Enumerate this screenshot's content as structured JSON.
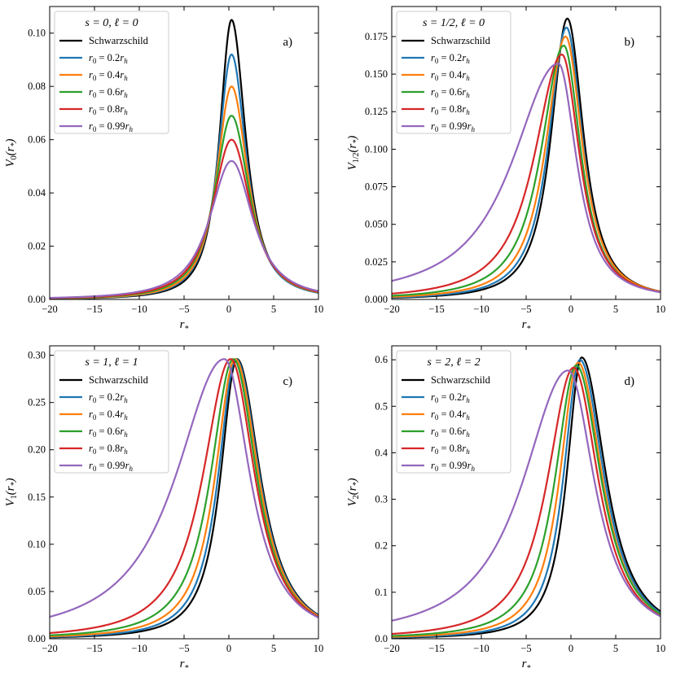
{
  "colors": {
    "schwarzschild": "#000000",
    "r0_0.2": "#1f77b4",
    "r0_0.4": "#ff7f0e",
    "r0_0.6": "#2ca02c",
    "r0_0.8": "#d62728",
    "r0_0.99": "#9467bd"
  },
  "chart_data": [
    {
      "type": "line",
      "panel_label": "a)",
      "legend_title": "s = 0, ℓ = 0",
      "xlabel": "r*",
      "ylabel": "V0(r*)",
      "xlim": [
        -20,
        10
      ],
      "ylim": [
        0,
        0.11
      ],
      "xticks": [
        -20,
        -15,
        -10,
        -5,
        0,
        5,
        10
      ],
      "yticks": [
        0.0,
        0.02,
        0.04,
        0.06,
        0.08,
        0.1
      ],
      "ytick_labels": [
        "0.00",
        "0.02",
        "0.04",
        "0.06",
        "0.08",
        "0.10"
      ],
      "legend_position": "top-left",
      "series": [
        {
          "name": "Schwarzschild",
          "color_key": "schwarzschild",
          "peak_x": 0.3,
          "peak_y": 0.105,
          "width_left": 1.7,
          "width_right": 2.0,
          "tail_left": 0.0
        },
        {
          "name": "r0 = 0.2rh",
          "color_key": "r0_0.2",
          "peak_x": 0.3,
          "peak_y": 0.092,
          "width_left": 1.9,
          "width_right": 2.1,
          "tail_left": 0.0
        },
        {
          "name": "r0 = 0.4rh",
          "color_key": "r0_0.4",
          "peak_x": 0.3,
          "peak_y": 0.08,
          "width_left": 2.1,
          "width_right": 2.3,
          "tail_left": 0.0
        },
        {
          "name": "r0 = 0.6rh",
          "color_key": "r0_0.6",
          "peak_x": 0.3,
          "peak_y": 0.069,
          "width_left": 2.4,
          "width_right": 2.5,
          "tail_left": 0.0
        },
        {
          "name": "r0 = 0.8rh",
          "color_key": "r0_0.8",
          "peak_x": 0.3,
          "peak_y": 0.06,
          "width_left": 2.7,
          "width_right": 2.7,
          "tail_left": 0.0
        },
        {
          "name": "r0 = 0.99rh",
          "color_key": "r0_0.99",
          "peak_x": 0.3,
          "peak_y": 0.052,
          "width_left": 3.1,
          "width_right": 3.0,
          "tail_left": 0.0
        }
      ]
    },
    {
      "type": "line",
      "panel_label": "b)",
      "legend_title": "s = 1/2, ℓ = 0",
      "xlabel": "r*",
      "ylabel": "V1/2(r*)",
      "xlim": [
        -20,
        10
      ],
      "ylim": [
        0,
        0.195
      ],
      "xticks": [
        -20,
        -15,
        -10,
        -5,
        0,
        5,
        10
      ],
      "yticks": [
        0.0,
        0.025,
        0.05,
        0.075,
        0.1,
        0.125,
        0.15,
        0.175
      ],
      "ytick_labels": [
        "0.000",
        "0.025",
        "0.050",
        "0.075",
        "0.100",
        "0.125",
        "0.150",
        "0.175"
      ],
      "legend_position": "top-left",
      "series": [
        {
          "name": "Schwarzschild",
          "color_key": "schwarzschild",
          "peak_x": -0.4,
          "peak_y": 0.187,
          "width_left": 2.3,
          "width_right": 2.3,
          "tail_left": 0.0
        },
        {
          "name": "r0 = 0.2rh",
          "color_key": "r0_0.2",
          "peak_x": -0.5,
          "peak_y": 0.181,
          "width_left": 2.5,
          "width_right": 2.3,
          "tail_left": 0.0
        },
        {
          "name": "r0 = 0.4rh",
          "color_key": "r0_0.4",
          "peak_x": -0.6,
          "peak_y": 0.175,
          "width_left": 2.8,
          "width_right": 2.4,
          "tail_left": 0.0
        },
        {
          "name": "r0 = 0.6rh",
          "color_key": "r0_0.6",
          "peak_x": -0.8,
          "peak_y": 0.169,
          "width_left": 3.2,
          "width_right": 2.4,
          "tail_left": 0.0
        },
        {
          "name": "r0 = 0.8rh",
          "color_key": "r0_0.8",
          "peak_x": -1.0,
          "peak_y": 0.163,
          "width_left": 3.9,
          "width_right": 2.5,
          "tail_left": 0.0
        },
        {
          "name": "r0 = 0.99rh",
          "color_key": "r0_0.99",
          "peak_x": -1.4,
          "peak_y": 0.157,
          "width_left": 6.5,
          "width_right": 2.6,
          "tail_left": 0.0
        }
      ]
    },
    {
      "type": "line",
      "panel_label": "c)",
      "legend_title": "s = 1, ℓ = 1",
      "xlabel": "r*",
      "ylabel": "V1(r*)",
      "xlim": [
        -20,
        10
      ],
      "ylim": [
        0,
        0.31
      ],
      "xticks": [
        -20,
        -15,
        -10,
        -5,
        0,
        5,
        10
      ],
      "yticks": [
        0.0,
        0.05,
        0.1,
        0.15,
        0.2,
        0.25,
        0.3
      ],
      "ytick_labels": [
        "0.00",
        "0.05",
        "0.10",
        "0.15",
        "0.20",
        "0.25",
        "0.30"
      ],
      "legend_position": "top-left",
      "series": [
        {
          "name": "Schwarzschild",
          "color_key": "schwarzschild",
          "peak_x": 0.9,
          "peak_y": 0.296,
          "width_left": 2.3,
          "width_right": 3.3,
          "tail_left": 0.0
        },
        {
          "name": "r0 = 0.2rh",
          "color_key": "r0_0.2",
          "peak_x": 0.8,
          "peak_y": 0.296,
          "width_left": 2.5,
          "width_right": 3.3,
          "tail_left": 0.0
        },
        {
          "name": "r0 = 0.4rh",
          "color_key": "r0_0.4",
          "peak_x": 0.7,
          "peak_y": 0.296,
          "width_left": 2.8,
          "width_right": 3.3,
          "tail_left": 0.0
        },
        {
          "name": "r0 = 0.6rh",
          "color_key": "r0_0.6",
          "peak_x": 0.5,
          "peak_y": 0.296,
          "width_left": 3.2,
          "width_right": 3.3,
          "tail_left": 0.0
        },
        {
          "name": "r0 = 0.8rh",
          "color_key": "r0_0.8",
          "peak_x": 0.2,
          "peak_y": 0.296,
          "width_left": 3.9,
          "width_right": 3.4,
          "tail_left": 0.0
        },
        {
          "name": "r0 = 0.99rh",
          "color_key": "r0_0.99",
          "peak_x": -0.5,
          "peak_y": 0.296,
          "width_left": 6.8,
          "width_right": 3.6,
          "tail_left": 0.0
        }
      ]
    },
    {
      "type": "line",
      "panel_label": "d)",
      "legend_title": "s = 2, ℓ = 2",
      "xlabel": "r*",
      "ylabel": "V2(r*)",
      "xlim": [
        -20,
        10
      ],
      "ylim": [
        0,
        0.63
      ],
      "xticks": [
        -20,
        -15,
        -10,
        -5,
        0,
        5,
        10
      ],
      "yticks": [
        0.0,
        0.1,
        0.2,
        0.3,
        0.4,
        0.5,
        0.6
      ],
      "ytick_labels": [
        "0.0",
        "0.1",
        "0.2",
        "0.3",
        "0.4",
        "0.5",
        "0.6"
      ],
      "legend_position": "top-left",
      "series": [
        {
          "name": "Schwarzschild",
          "color_key": "schwarzschild",
          "peak_x": 1.2,
          "peak_y": 0.605,
          "width_left": 2.1,
          "width_right": 3.4,
          "tail_left": 0.0
        },
        {
          "name": "r0 = 0.2rh",
          "color_key": "r0_0.2",
          "peak_x": 1.0,
          "peak_y": 0.6,
          "width_left": 2.3,
          "width_right": 3.4,
          "tail_left": 0.0
        },
        {
          "name": "r0 = 0.4rh",
          "color_key": "r0_0.4",
          "peak_x": 0.8,
          "peak_y": 0.594,
          "width_left": 2.6,
          "width_right": 3.4,
          "tail_left": 0.0
        },
        {
          "name": "r0 = 0.6rh",
          "color_key": "r0_0.6",
          "peak_x": 0.6,
          "peak_y": 0.588,
          "width_left": 3.0,
          "width_right": 3.5,
          "tail_left": 0.0
        },
        {
          "name": "r0 = 0.8rh",
          "color_key": "r0_0.8",
          "peak_x": 0.3,
          "peak_y": 0.583,
          "width_left": 3.7,
          "width_right": 3.5,
          "tail_left": 0.0
        },
        {
          "name": "r0 = 0.99rh",
          "color_key": "r0_0.99",
          "peak_x": -0.3,
          "peak_y": 0.577,
          "width_left": 6.4,
          "width_right": 3.7,
          "tail_left": 0.0
        }
      ]
    }
  ]
}
